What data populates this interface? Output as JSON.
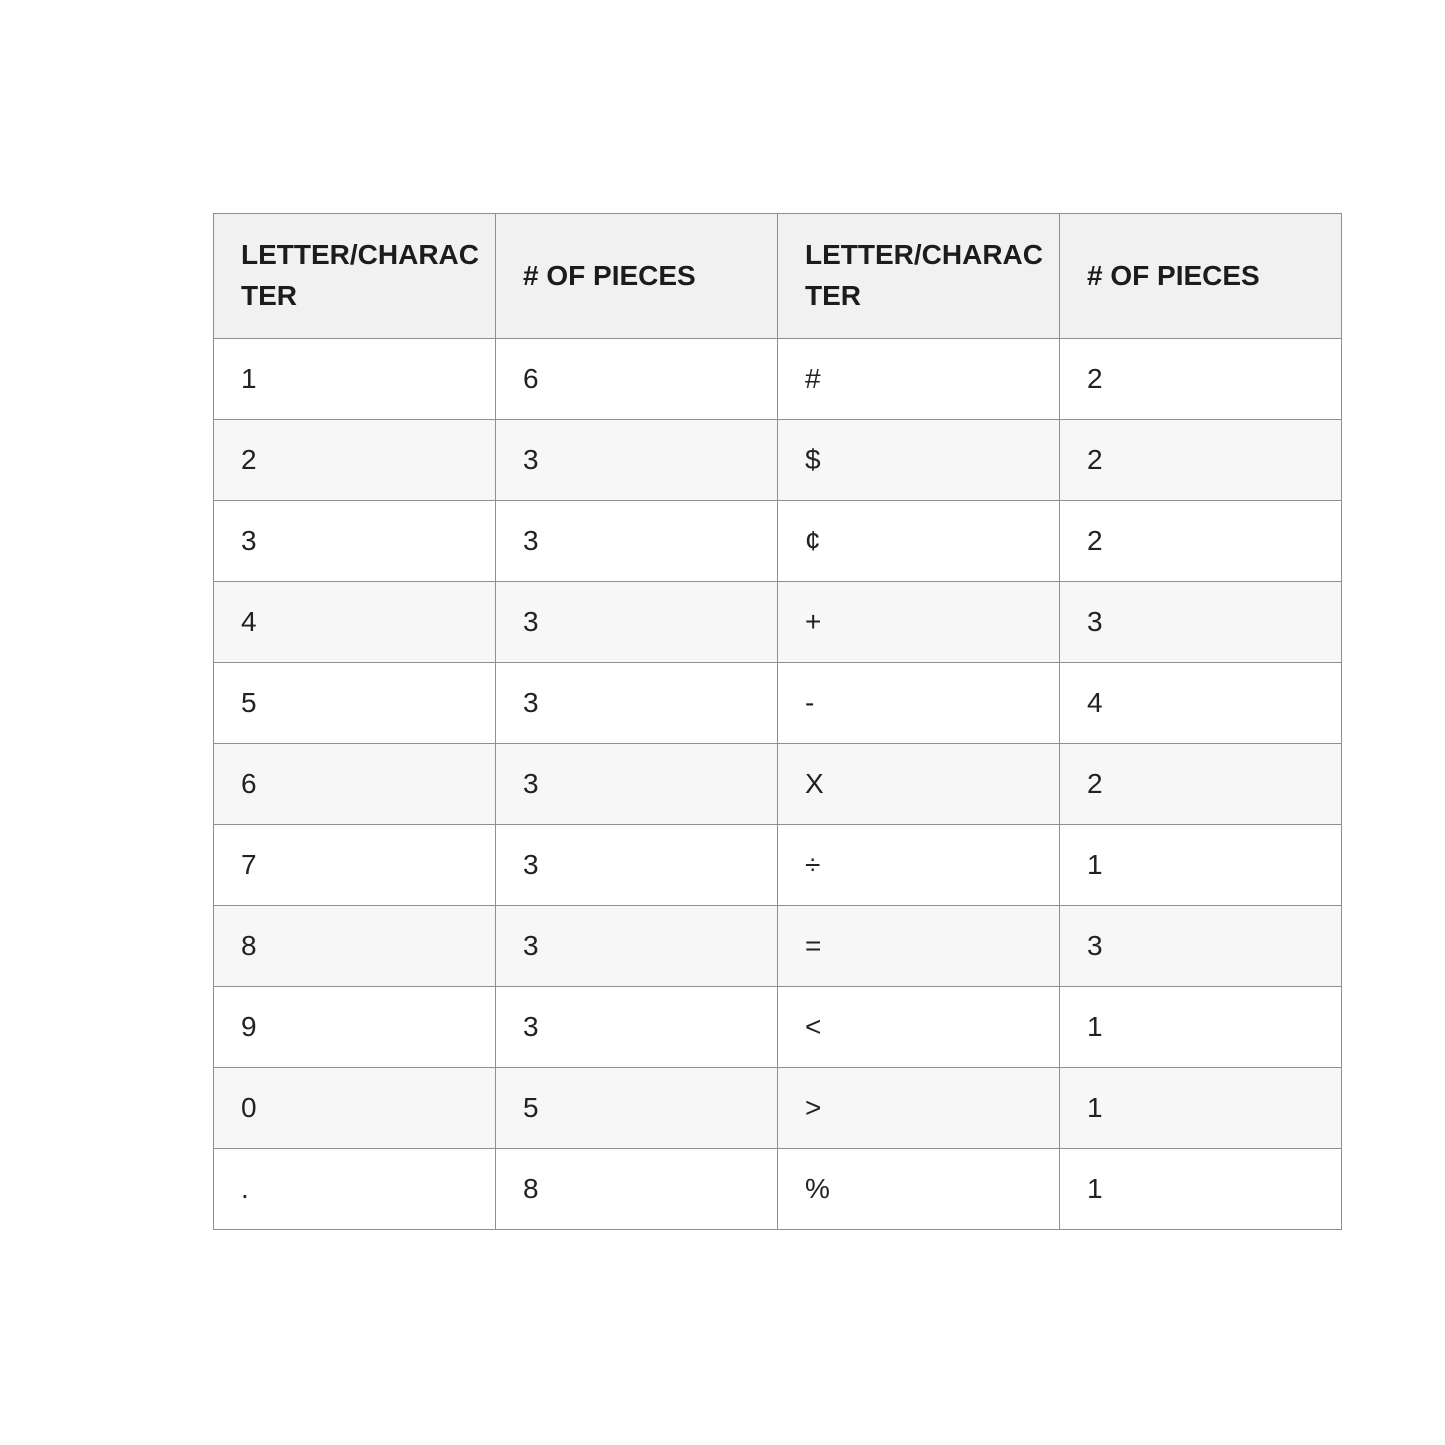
{
  "table": {
    "headers": [
      "LETTER/CHARACTER",
      "# OF PIECES",
      "LETTER/CHARACTER",
      "# OF PIECES"
    ],
    "rows": [
      [
        "1",
        "6",
        "#",
        "2"
      ],
      [
        "2",
        "3",
        "$",
        "2"
      ],
      [
        "3",
        "3",
        "¢",
        "2"
      ],
      [
        "4",
        "3",
        "+",
        "3"
      ],
      [
        "5",
        "3",
        "-",
        "4"
      ],
      [
        "6",
        "3",
        "X",
        "2"
      ],
      [
        "7",
        "3",
        "÷",
        "1"
      ],
      [
        "8",
        "3",
        "=",
        "3"
      ],
      [
        "9",
        "3",
        "<",
        "1"
      ],
      [
        "0",
        "5",
        ">",
        "1"
      ],
      [
        ".",
        "8",
        "%",
        "1"
      ]
    ],
    "colors": {
      "header_background": "#f1f1f1",
      "alt_row_background": "#f7f7f7",
      "border": "#8f8f8f",
      "text": "#222222",
      "page_background": "#ffffff"
    }
  }
}
